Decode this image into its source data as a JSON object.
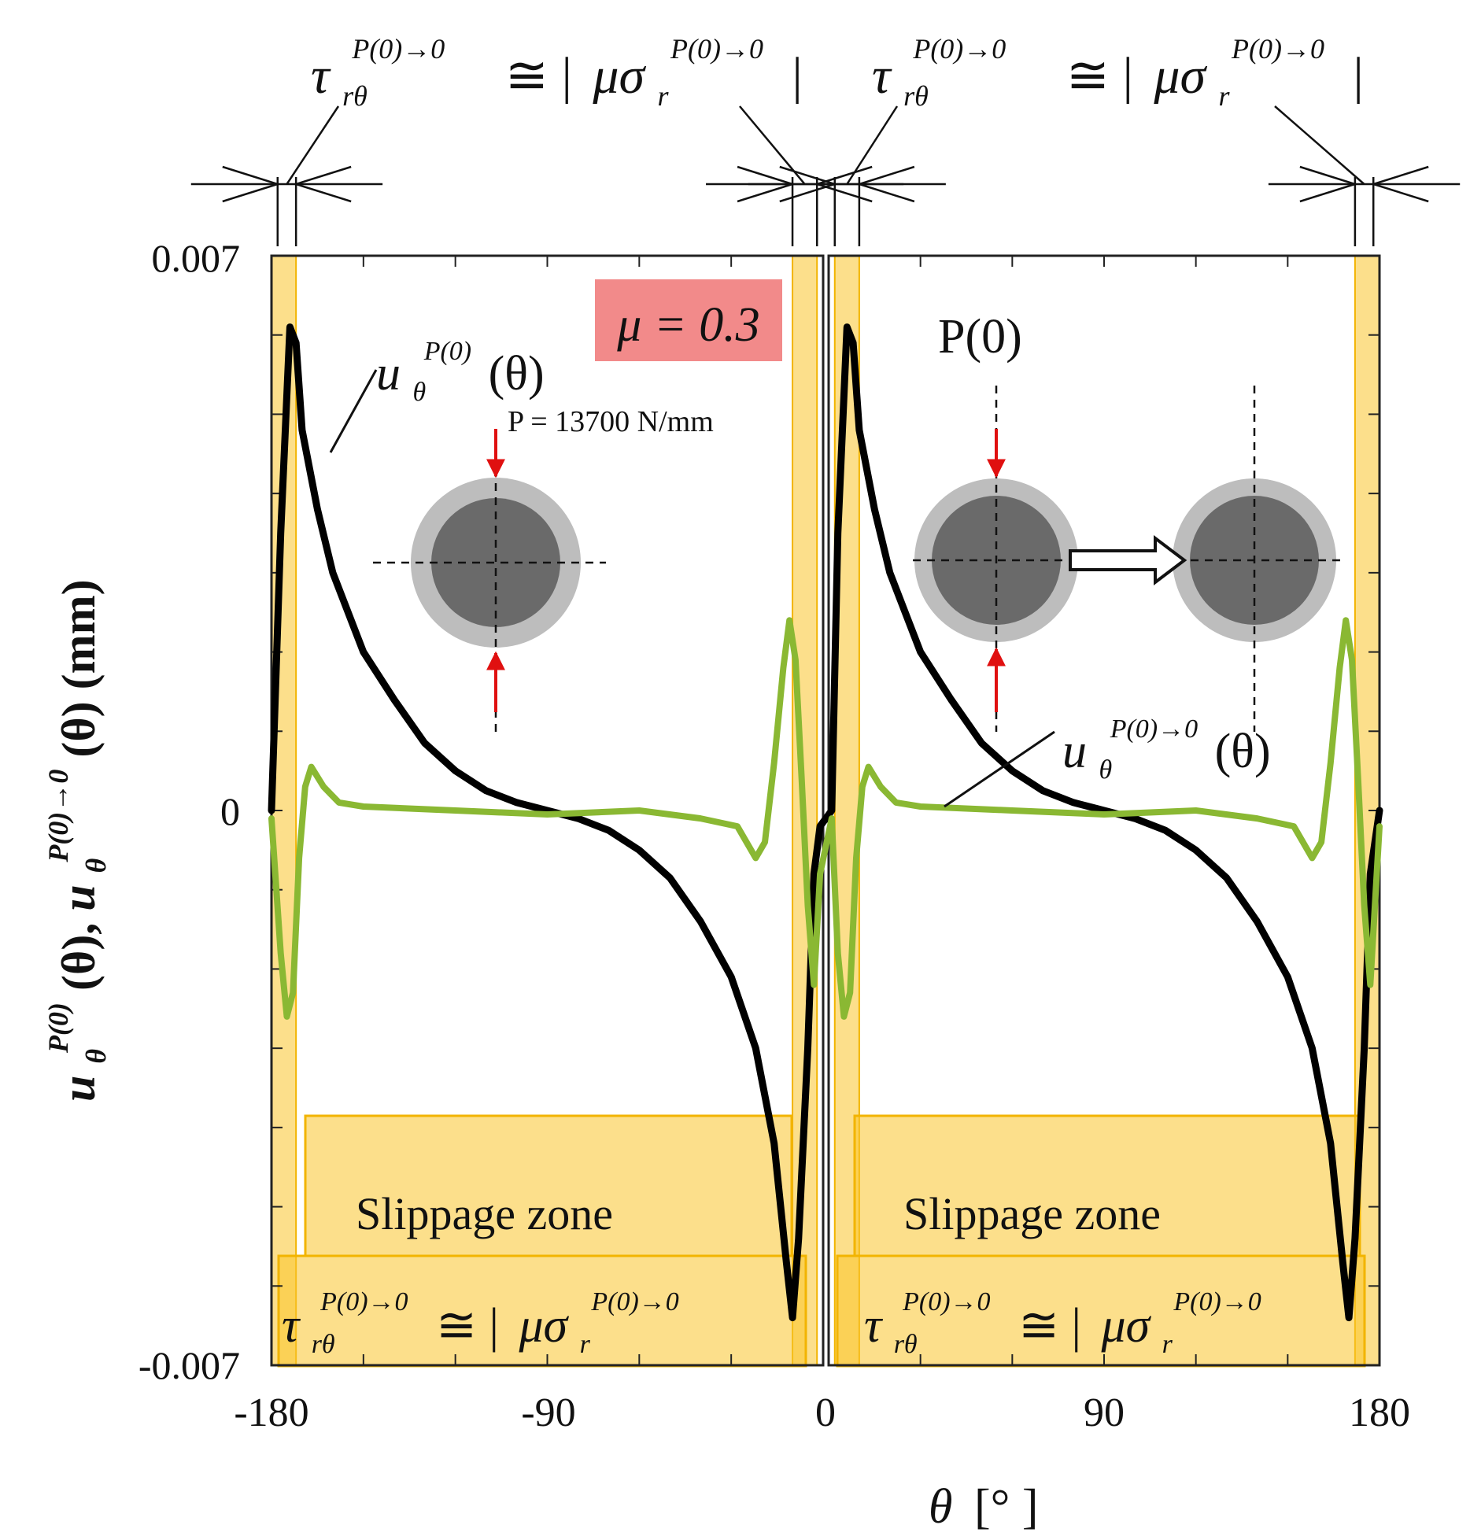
{
  "chart_data": {
    "type": "line",
    "title": "",
    "panels": [
      {
        "name": "left",
        "xlim": [
          -180,
          0
        ]
      },
      {
        "name": "right",
        "xlim": [
          0,
          180
        ]
      }
    ],
    "xlabel": {
      "symbol": "θ",
      "unit": "[°   ]"
    },
    "ylabel": {
      "part1": "u",
      "sup1": "P(0)",
      "sub1": "θ",
      "arg1": "(θ),",
      "part2": "u",
      "sup2": "P(0)→0",
      "sub2": "θ",
      "arg2": "(θ)",
      "unit": "(mm)"
    },
    "ylim": [
      -0.007,
      0.007
    ],
    "x_ticks": [
      "-180",
      "-90",
      "0",
      "90",
      "180"
    ],
    "y_ticks": [
      "0.007",
      "0",
      "-0.007"
    ],
    "mu_label": "μ = 0.3",
    "load_label": "P = 13700 N/mm",
    "state_label": "P(0)",
    "curve_labels": {
      "black": {
        "base": "u",
        "sup": "P(0)",
        "sub": "θ",
        "arg": "(θ)"
      },
      "green": {
        "base": "u",
        "sup": "P(0)→0",
        "sub": "θ",
        "arg": "(θ)"
      }
    },
    "slippage_label": "Slippage zone",
    "equation": {
      "tau": "τ",
      "tau_sub": "rθ",
      "sup": "P(0)→0",
      "rel": "≅ |",
      "musigma": "μσ",
      "sigma_sub": "r",
      "close": "|"
    },
    "slip_zones": [
      [
        -180,
        -172
      ],
      [
        -10,
        -2
      ],
      [
        2,
        10
      ],
      [
        172,
        180
      ]
    ],
    "series": [
      {
        "name": "u_theta^P(0)(θ)",
        "color": "#000000",
        "points": [
          [
            -180,
            0.0
          ],
          [
            -177,
            0.0035
          ],
          [
            -174,
            0.0061
          ],
          [
            -172,
            0.0059
          ],
          [
            -170,
            0.0048
          ],
          [
            -165,
            0.0038
          ],
          [
            -160,
            0.003
          ],
          [
            -150,
            0.002
          ],
          [
            -140,
            0.0014
          ],
          [
            -130,
            0.00085
          ],
          [
            -120,
            0.0005
          ],
          [
            -110,
            0.00025
          ],
          [
            -100,
            0.0001
          ],
          [
            -90,
            0.0
          ],
          [
            -80,
            -0.0001
          ],
          [
            -70,
            -0.00025
          ],
          [
            -60,
            -0.0005
          ],
          [
            -50,
            -0.00085
          ],
          [
            -40,
            -0.0014
          ],
          [
            -30,
            -0.0021
          ],
          [
            -22,
            -0.003
          ],
          [
            -16,
            -0.0042
          ],
          [
            -12,
            -0.0057
          ],
          [
            -10,
            -0.0064
          ],
          [
            -8,
            -0.0054
          ],
          [
            -5,
            -0.003
          ],
          [
            -3,
            -0.0008
          ],
          [
            -1,
            -0.0002
          ],
          [
            1,
            0.0
          ],
          [
            3,
            0.0035
          ],
          [
            6,
            0.0061
          ],
          [
            8,
            0.0059
          ],
          [
            10,
            0.0048
          ],
          [
            15,
            0.0038
          ],
          [
            20,
            0.003
          ],
          [
            30,
            0.002
          ],
          [
            40,
            0.0014
          ],
          [
            50,
            0.00085
          ],
          [
            60,
            0.0005
          ],
          [
            70,
            0.00025
          ],
          [
            80,
            0.0001
          ],
          [
            90,
            0.0
          ],
          [
            100,
            -0.0001
          ],
          [
            110,
            -0.00025
          ],
          [
            120,
            -0.0005
          ],
          [
            130,
            -0.00085
          ],
          [
            140,
            -0.0014
          ],
          [
            150,
            -0.0021
          ],
          [
            158,
            -0.003
          ],
          [
            164,
            -0.0042
          ],
          [
            168,
            -0.0057
          ],
          [
            170,
            -0.0064
          ],
          [
            172,
            -0.0054
          ],
          [
            175,
            -0.003
          ],
          [
            177,
            -0.0008
          ],
          [
            180,
            0.0
          ]
        ]
      },
      {
        "name": "u_theta^P(0)→0(θ)",
        "color": "#8ab833",
        "points": [
          [
            -180,
            -0.0001
          ],
          [
            -177,
            -0.0018
          ],
          [
            -175,
            -0.0026
          ],
          [
            -173,
            -0.0023
          ],
          [
            -171,
            -0.0006
          ],
          [
            -169,
            0.0003
          ],
          [
            -167,
            0.00055
          ],
          [
            -163,
            0.0003
          ],
          [
            -158,
            0.0001
          ],
          [
            -150,
            5e-05
          ],
          [
            -120,
            0.0
          ],
          [
            -90,
            -5e-05
          ],
          [
            -60,
            0.0
          ],
          [
            -40,
            -0.0001
          ],
          [
            -28,
            -0.0002
          ],
          [
            -22,
            -0.0006
          ],
          [
            -19,
            -0.0004
          ],
          [
            -16,
            0.0006
          ],
          [
            -13,
            0.0018
          ],
          [
            -11,
            0.0024
          ],
          [
            -9,
            0.0019
          ],
          [
            -7,
            0.0004
          ],
          [
            -5,
            -0.0012
          ],
          [
            -3,
            -0.0022
          ],
          [
            -1,
            -0.0008
          ],
          [
            1,
            -0.0001
          ],
          [
            3,
            -0.0018
          ],
          [
            5,
            -0.0026
          ],
          [
            7,
            -0.0023
          ],
          [
            9,
            -0.0006
          ],
          [
            11,
            0.0003
          ],
          [
            13,
            0.00055
          ],
          [
            17,
            0.0003
          ],
          [
            22,
            0.0001
          ],
          [
            30,
            5e-05
          ],
          [
            60,
            0.0
          ],
          [
            90,
            -5e-05
          ],
          [
            120,
            0.0
          ],
          [
            140,
            -0.0001
          ],
          [
            152,
            -0.0002
          ],
          [
            158,
            -0.0006
          ],
          [
            161,
            -0.0004
          ],
          [
            164,
            0.0006
          ],
          [
            167,
            0.0018
          ],
          [
            169,
            0.0024
          ],
          [
            171,
            0.0019
          ],
          [
            173,
            0.0004
          ],
          [
            175,
            -0.0012
          ],
          [
            177,
            -0.0022
          ],
          [
            180,
            -0.0002
          ]
        ]
      }
    ]
  }
}
